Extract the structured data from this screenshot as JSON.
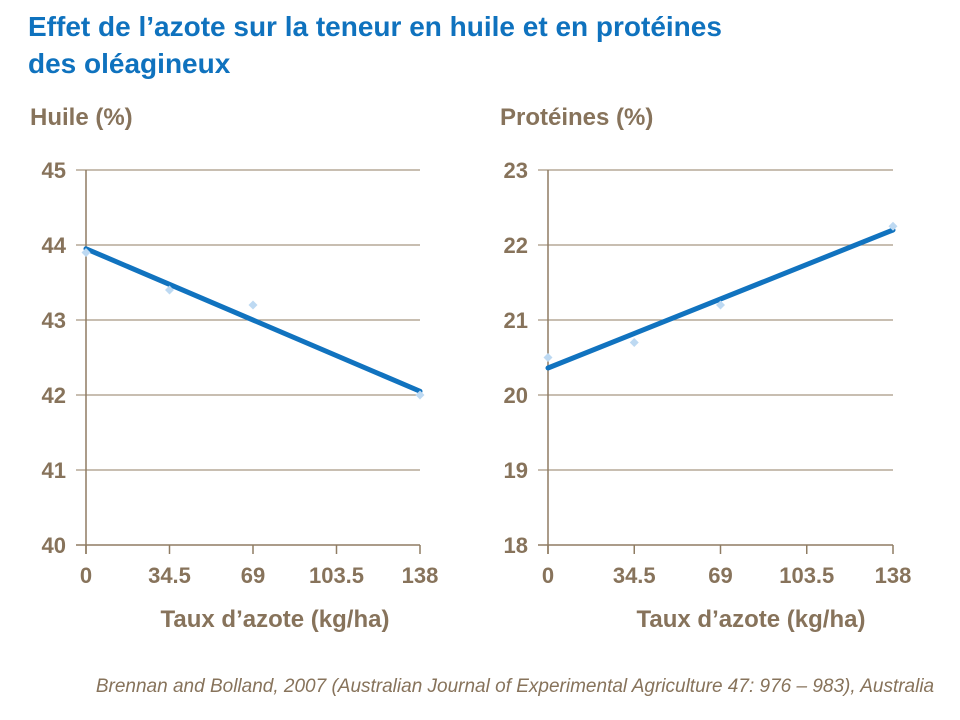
{
  "slide": {
    "title_line1": "Effet de l’azote sur la teneur en huile et en protéines",
    "title_line2": "des oléagineux"
  },
  "footer": {
    "citation": "Brennan and Bolland, 2007 (Australian Journal of Experimental Agriculture 47: 976 – 983), Australia"
  },
  "colors": {
    "title_blue": "#0F72BE",
    "trend_line": "#1173BF",
    "marker": "#BDD9F2",
    "text_brown": "#87735B",
    "grid": "#A79882",
    "axis": "#8F7C63",
    "background": "#FFFFFF"
  },
  "chart_data": [
    {
      "type": "scatter",
      "title": "Huile (%)",
      "xlabel": "Taux d’azote (kg/ha)",
      "ylabel": "Huile (%)",
      "x_ticks": [
        0,
        34.5,
        69,
        103.5,
        138
      ],
      "xlim": [
        0,
        138
      ],
      "ylim": [
        40,
        45
      ],
      "y_tick_step": 1,
      "grid": true,
      "legend": "none",
      "points": [
        [
          0,
          43.9
        ],
        [
          34.5,
          43.4
        ],
        [
          69,
          43.2
        ],
        [
          138,
          42.0
        ]
      ],
      "trendline": {
        "x": [
          0,
          138
        ],
        "y": [
          43.95,
          42.05
        ]
      }
    },
    {
      "type": "scatter",
      "title": "Protéines (%)",
      "xlabel": "Taux d’azote (kg/ha)",
      "ylabel": "Protéines (%)",
      "x_ticks": [
        0,
        34.5,
        69,
        103.5,
        138
      ],
      "xlim": [
        0,
        138
      ],
      "ylim": [
        18,
        23
      ],
      "y_tick_step": 1,
      "grid": true,
      "legend": "none",
      "points": [
        [
          0,
          20.5
        ],
        [
          34.5,
          20.7
        ],
        [
          69,
          21.2
        ],
        [
          138,
          22.25
        ]
      ],
      "trendline": {
        "x": [
          0,
          138
        ],
        "y": [
          20.36,
          22.2
        ]
      }
    }
  ]
}
